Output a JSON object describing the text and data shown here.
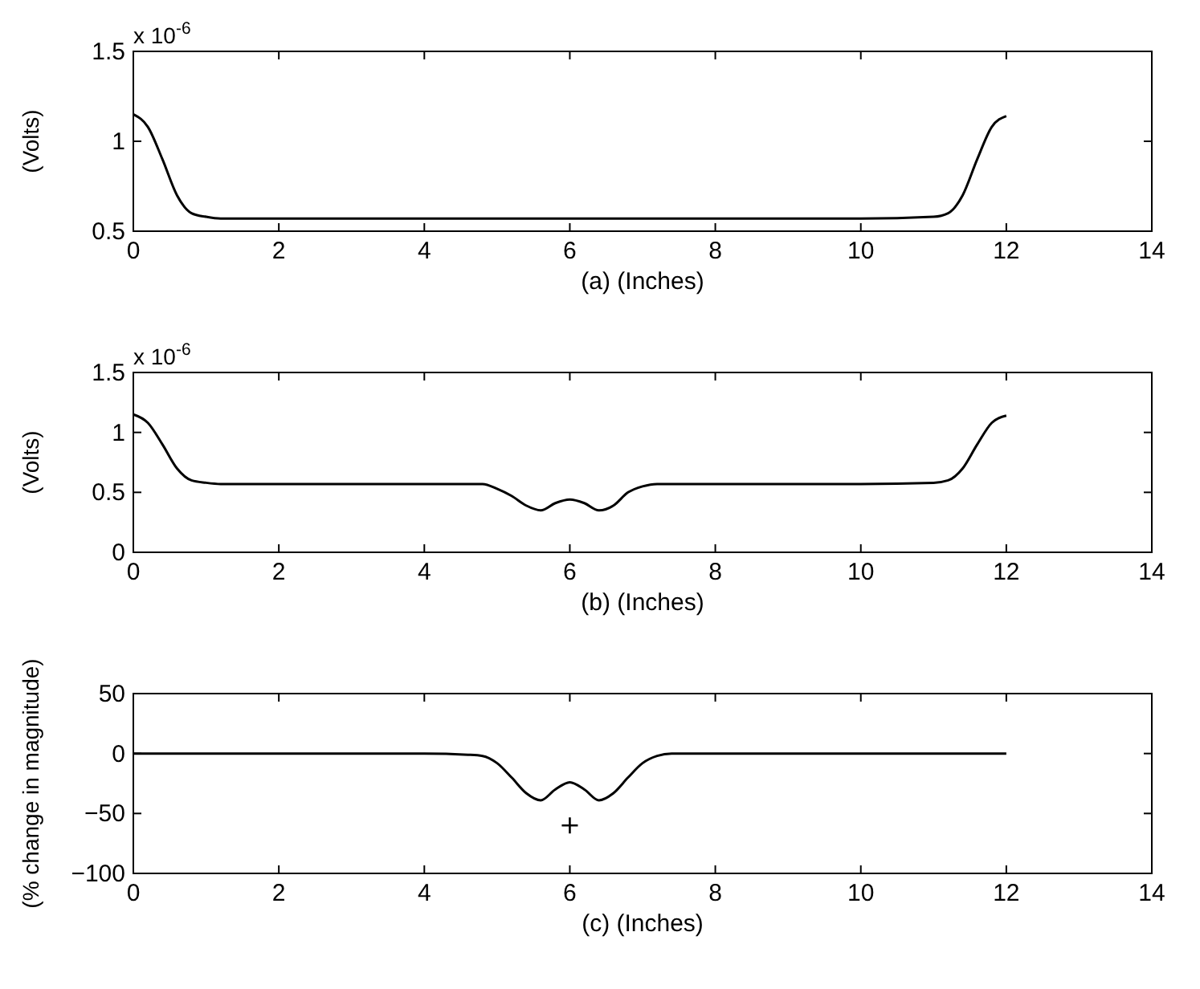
{
  "chart_data": [
    {
      "type": "line",
      "xlabel": "(a) (Inches)",
      "ylabel": "(Volts)",
      "annotations": [
        "x 10$^{-6}$"
      ],
      "xlim": [
        0,
        14
      ],
      "xticks": [
        0,
        2,
        4,
        6,
        8,
        10,
        12,
        14
      ],
      "ylim": [
        0.5,
        1.5
      ],
      "yticks": [
        0.5,
        1,
        1.5
      ],
      "grid": false,
      "series": [
        {
          "color": "#000000",
          "x": [
            0,
            0.2,
            0.4,
            0.6,
            0.8,
            1.0,
            1.2,
            2,
            4,
            6,
            8,
            10,
            11,
            11.2,
            11.4,
            11.6,
            11.8,
            12
          ],
          "values": [
            1.15,
            1.08,
            0.9,
            0.7,
            0.6,
            0.58,
            0.57,
            0.57,
            0.57,
            0.57,
            0.57,
            0.57,
            0.58,
            0.6,
            0.7,
            0.9,
            1.08,
            1.14
          ]
        }
      ]
    },
    {
      "type": "line",
      "xlabel": "(b) (Inches)",
      "ylabel": "(Volts)",
      "annotations": [
        "x 10$^{-6}$"
      ],
      "xlim": [
        0,
        14
      ],
      "xticks": [
        0,
        2,
        4,
        6,
        8,
        10,
        12,
        14
      ],
      "ylim": [
        0,
        1.5
      ],
      "yticks": [
        0,
        0.5,
        1,
        1.5
      ],
      "grid": false,
      "series": [
        {
          "color": "#000000",
          "x": [
            0,
            0.2,
            0.4,
            0.6,
            0.8,
            1.0,
            1.2,
            2,
            4,
            4.8,
            5.0,
            5.2,
            5.4,
            5.6,
            5.8,
            6.0,
            6.2,
            6.4,
            6.6,
            6.8,
            7.0,
            7.2,
            8,
            10,
            11,
            11.2,
            11.4,
            11.6,
            11.8,
            12
          ],
          "values": [
            1.15,
            1.08,
            0.9,
            0.7,
            0.6,
            0.58,
            0.57,
            0.57,
            0.57,
            0.57,
            0.53,
            0.47,
            0.39,
            0.35,
            0.41,
            0.44,
            0.41,
            0.35,
            0.39,
            0.5,
            0.55,
            0.57,
            0.57,
            0.57,
            0.58,
            0.6,
            0.7,
            0.9,
            1.08,
            1.14
          ]
        }
      ]
    },
    {
      "type": "line",
      "xlabel": "(c) (Inches)",
      "ylabel": "(% change in magnitude)",
      "xlim": [
        0,
        14
      ],
      "xticks": [
        0,
        2,
        4,
        6,
        8,
        10,
        12,
        14
      ],
      "ylim": [
        -100,
        50
      ],
      "yticks": [
        -100,
        -50,
        0,
        50
      ],
      "grid": false,
      "series": [
        {
          "color": "#000000",
          "x": [
            0,
            2,
            4,
            4.6,
            4.8,
            5.0,
            5.2,
            5.4,
            5.6,
            5.8,
            6.0,
            6.2,
            6.4,
            6.6,
            6.8,
            7.0,
            7.2,
            7.4,
            8,
            10,
            12
          ],
          "values": [
            0,
            0,
            0,
            -1,
            -2,
            -8,
            -20,
            -33,
            -39,
            -30,
            -24,
            -30,
            -39,
            -33,
            -20,
            -8,
            -2,
            0,
            0,
            0,
            0
          ]
        },
        {
          "type": "scatter",
          "marker": "cross",
          "color": "#000000",
          "x": [
            6
          ],
          "values": [
            -60
          ]
        }
      ]
    }
  ]
}
